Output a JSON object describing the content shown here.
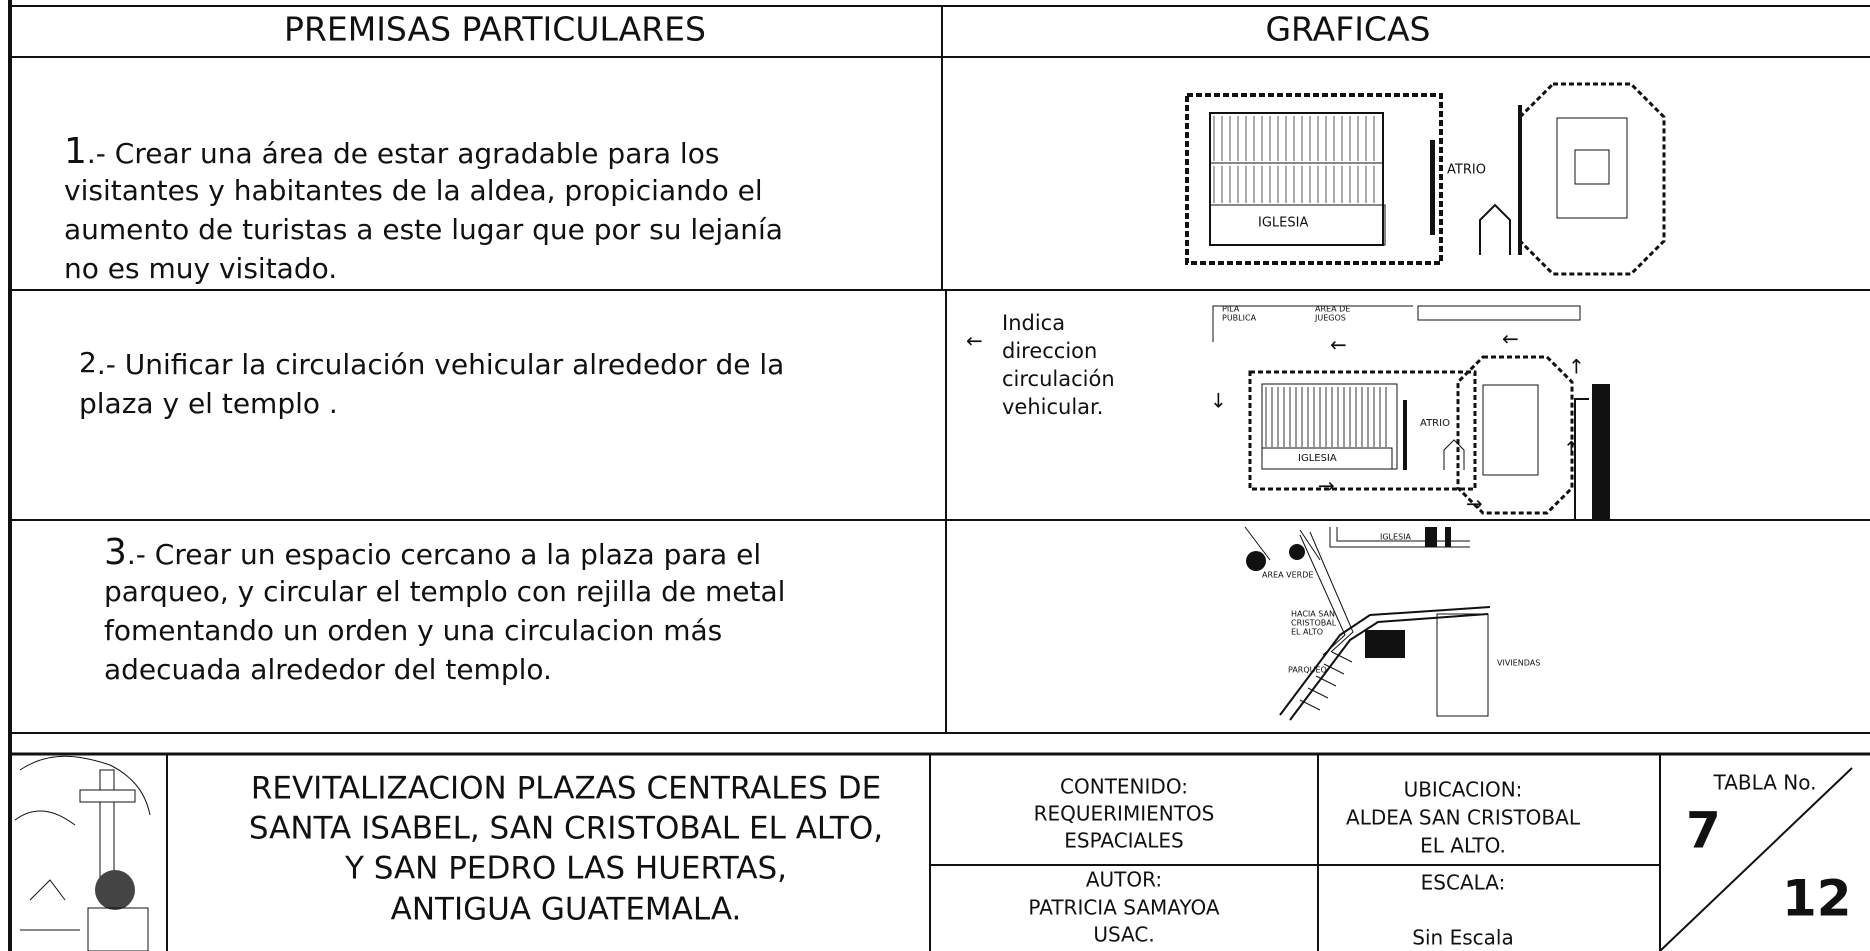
{
  "header": {
    "left": "PREMISAS PARTICULARES",
    "right": "GRAFICAS"
  },
  "items": [
    {
      "number": "1",
      "lines": [
        ".-  Crear una área de estar agradable para los",
        "visitantes y habitantes de la aldea, propiciando el",
        "aumento de turistas a este lugar que por su lejanía",
        "no es muy visitado."
      ]
    },
    {
      "number": "2",
      "lines": [
        ".-  Unificar la circulación vehicular alrededor de la",
        "plaza y el templo ."
      ]
    },
    {
      "number": "3",
      "lines": [
        ".-  Crear un espacio cercano a la plaza para el",
        "parqueo, y circular el templo con rejilla de metal",
        "fomentando un orden y una circulacion más",
        "adecuada alrededor del templo."
      ]
    }
  ],
  "graphics": {
    "g1": {
      "atrio": "ATRIO",
      "iglesia": "IGLESIA"
    },
    "g2": {
      "note": [
        "Indica",
        "direccion",
        "circulación",
        "vehicular."
      ],
      "pila": [
        "PILA",
        "PUBLICA"
      ],
      "juegos": [
        "AREA DE",
        "JUEGOS"
      ],
      "atrio": "ATRIO",
      "iglesia": "IGLESIA"
    },
    "g3": {
      "iglesia": "IGLESIA",
      "verde": "AREA VERDE",
      "hacia": [
        "HACIA SAN",
        "CRISTOBAL",
        "EL ALTO"
      ],
      "parqueo": "PARQUEO",
      "viviendas": "VIVIENDAS"
    }
  },
  "footer": {
    "title": [
      "REVITALIZACION PLAZAS CENTRALES DE",
      "SANTA ISABEL, SAN CRISTOBAL EL ALTO,",
      "Y SAN PEDRO LAS HUERTAS,",
      "ANTIGUA GUATEMALA."
    ],
    "contenido": [
      "CONTENIDO:",
      "REQUERIMIENTOS",
      "ESPACIALES"
    ],
    "autor": [
      "AUTOR:",
      "PATRICIA SAMAYOA",
      "USAC."
    ],
    "ubicacion": [
      "UBICACION:",
      "ALDEA SAN CRISTOBAL",
      "EL ALTO."
    ],
    "escala_label": "ESCALA:",
    "escala": "Sin Escala",
    "tabla_label": "TABLA No.",
    "tabla": "7",
    "total": "12"
  }
}
